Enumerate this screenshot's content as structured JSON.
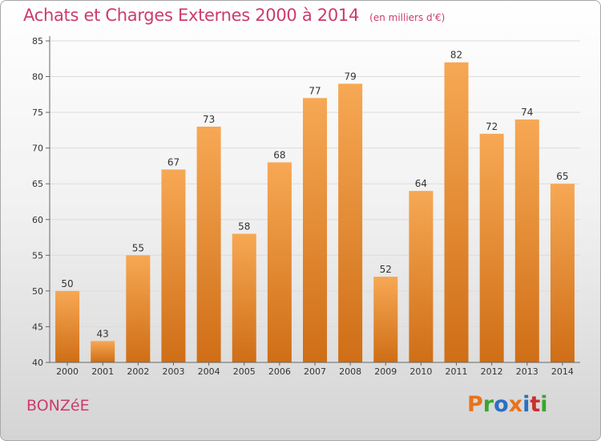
{
  "header": {
    "title": "Achats et Charges Externes 2000 à 2014",
    "subtitle": "(en milliers d'€)"
  },
  "footer": {
    "town": "BONZéE",
    "brand": "Proxiti"
  },
  "colors": {
    "title": "#cc3b6e",
    "bar_light": "#f7a854",
    "bar_dark": "#cf6e16",
    "brand_letters": [
      "#e8731c",
      "#39a62e",
      "#2b6fc4",
      "#e8731c",
      "#2b6fc4",
      "#c9302c",
      "#39a62e"
    ]
  },
  "chart_data": {
    "type": "bar",
    "title": "Achats et Charges Externes 2000 à 2014",
    "subtitle": "(en milliers d'€)",
    "categories": [
      "2000",
      "2001",
      "2002",
      "2003",
      "2004",
      "2005",
      "2006",
      "2007",
      "2008",
      "2009",
      "2010",
      "2011",
      "2012",
      "2013",
      "2014"
    ],
    "values": [
      50,
      43,
      55,
      67,
      73,
      58,
      68,
      77,
      79,
      52,
      64,
      82,
      72,
      74,
      65
    ],
    "ylim": [
      40,
      85
    ],
    "yticks": [
      40,
      45,
      50,
      55,
      60,
      65,
      70,
      75,
      80,
      85
    ],
    "grid": true,
    "legend": "none"
  }
}
